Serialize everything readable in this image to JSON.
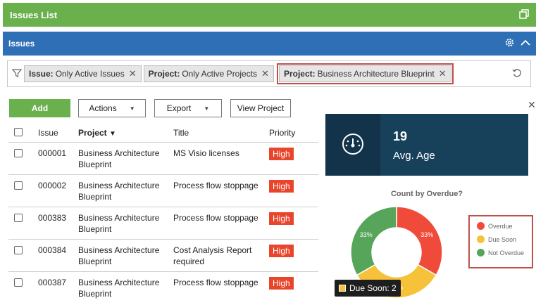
{
  "header": {
    "title": "Issues List"
  },
  "panel": {
    "title": "Issues"
  },
  "filters": [
    {
      "key": "Issue:",
      "value": "Only Active Issues"
    },
    {
      "key": "Project:",
      "value": "Only Active Projects"
    },
    {
      "key": "Project:",
      "value": "Business Architecture Blueprint"
    }
  ],
  "toolbar": {
    "add": "Add",
    "actions": "Actions",
    "export": "Export",
    "view_project": "View Project"
  },
  "table": {
    "columns": [
      "Issue",
      "Project",
      "Title",
      "Priority"
    ],
    "rows": [
      {
        "issue": "000001",
        "project": "Business Architecture Blueprint",
        "title": "MS Visio licenses",
        "priority": "High"
      },
      {
        "issue": "000002",
        "project": "Business Architecture Blueprint",
        "title": "Process flow stoppage",
        "priority": "High"
      },
      {
        "issue": "000383",
        "project": "Business Architecture Blueprint",
        "title": "Process flow stoppage",
        "priority": "High"
      },
      {
        "issue": "000384",
        "project": "Business Architecture Blueprint",
        "title": "Cost Analysis Report required",
        "priority": "High"
      },
      {
        "issue": "000387",
        "project": "Business Architecture Blueprint",
        "title": "Process flow stoppage",
        "priority": "High"
      }
    ]
  },
  "kpi": {
    "value": "19",
    "label": "Avg. Age"
  },
  "chart": {
    "title": "Count by Overdue?",
    "slices": [
      {
        "name": "Overdue",
        "pct": 33,
        "label": "33%",
        "color": "#f04b3a"
      },
      {
        "name": "Due Soon",
        "pct": 33,
        "label": "33%",
        "color": "#f6c23a"
      },
      {
        "name": "Not Overdue",
        "pct": 33,
        "label": "33%",
        "color": "#57a55a"
      }
    ],
    "tooltip": "Due Soon: 2"
  },
  "colors": {
    "header_green": "#6ab04c",
    "panel_blue": "#2f6fb5",
    "kpi_bg": "#17405a",
    "priority_red": "#e8452c"
  }
}
